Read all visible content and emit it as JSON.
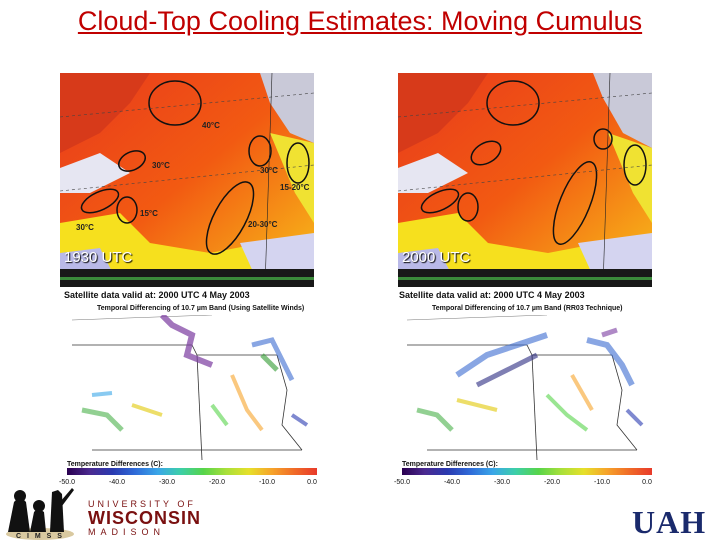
{
  "title": "Cloud-Top Cooling Estimates: Moving Cumulus",
  "satellite_panels": [
    {
      "time_label": "1930 UTC",
      "annotations": [
        "40°C",
        "30°C",
        "30°C",
        "15-20°C",
        "15°C",
        "30°C",
        "20-30°C"
      ]
    },
    {
      "time_label": "2000 UTC"
    }
  ],
  "difference_panels": [
    {
      "header": "Satellite data valid at:  2000 UTC    4 May      2003",
      "subheader": "Temporal Differencing of 10.7 µm Band (Using Satellite Winds)",
      "legend_title": "Temperature Differences (C):",
      "ticks": [
        "-50.0",
        "-40.0",
        "-30.0",
        "-20.0",
        "-10.0",
        "0.0"
      ]
    },
    {
      "header": "Satellite data valid at:  2000 UTC    4 May      2003",
      "subheader": "Temporal Differencing of 10.7 µm Band (RR03 Technique)",
      "legend_title": "Temperature Differences (C):",
      "ticks": [
        "-50.0",
        "-40.0",
        "-30.0",
        "-20.0",
        "-10.0",
        "0.0"
      ]
    }
  ],
  "logos": {
    "cimss": "CIMSS",
    "uw_top": "UNIVERSITY OF",
    "uw_mid": "WISCONSIN",
    "uw_bottom": "MADISON",
    "uah": "UAH"
  }
}
